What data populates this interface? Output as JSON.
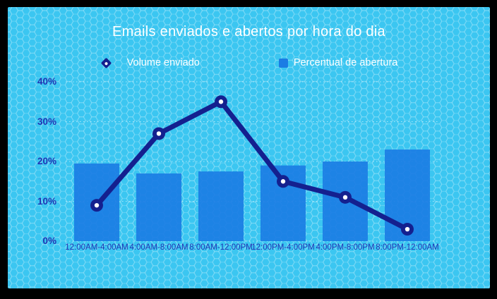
{
  "frame": {
    "background": "#000000"
  },
  "card": {
    "background": "#3bc6f1",
    "pattern": "honeycomb-hexagons"
  },
  "chart_data": {
    "type": "bar",
    "title": "Emails enviados e abertos por hora do dia",
    "title_color": "#ffffff",
    "axis_label_color": "#2034b4",
    "categories": [
      "12:00AM-4:00AM",
      "4:00AM-8:00AM",
      "8:00AM-12:00PM",
      "12:00PM-4:00PM",
      "4:00PM-8:00PM",
      "8:00PM-12:00AM"
    ],
    "series": [
      {
        "name": "Volume enviado",
        "type": "line",
        "values": [
          9,
          27,
          35,
          15,
          11,
          3
        ],
        "color": "#14208f",
        "marker": "circle-with-white-dot"
      },
      {
        "name": "Percentual de abertura",
        "type": "bar",
        "values": [
          19.5,
          17,
          17.5,
          19,
          20,
          23
        ],
        "color": "#1b7de4"
      }
    ],
    "ylim": [
      0,
      40
    ],
    "yticks": [
      "0%",
      "10%",
      "20%",
      "30%",
      "40%"
    ],
    "unit": "%",
    "grid": "dotted-horizontal-white",
    "legend_position": "top-center"
  }
}
